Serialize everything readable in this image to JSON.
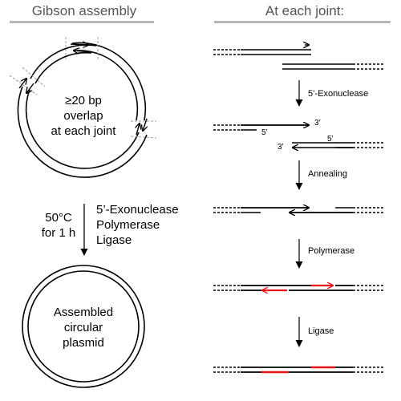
{
  "left": {
    "header": "Gibson assembly",
    "overlap_text": [
      "≥20 bp",
      "overlap",
      "at each joint"
    ],
    "condition_text": [
      "50°C",
      "for 1 h"
    ],
    "enzymes": [
      "5’-Exonuclease",
      "Polymerase",
      "Ligase"
    ],
    "product_text": [
      "Assembled",
      "circular",
      "plasmid"
    ]
  },
  "right": {
    "header": "At each joint:",
    "steps": [
      "5’-Exonuclease",
      "Annealing",
      "Polymerase",
      "Ligase"
    ],
    "strand_labels": {
      "top_three": "3’",
      "top_five": "5’",
      "bottom_three": "3’",
      "bottom_five": "5’"
    }
  },
  "colors": {
    "dna": "#000000",
    "new_dna": "#e8141a",
    "header_rule": "#b5b5b5",
    "header_text": "#555555"
  }
}
